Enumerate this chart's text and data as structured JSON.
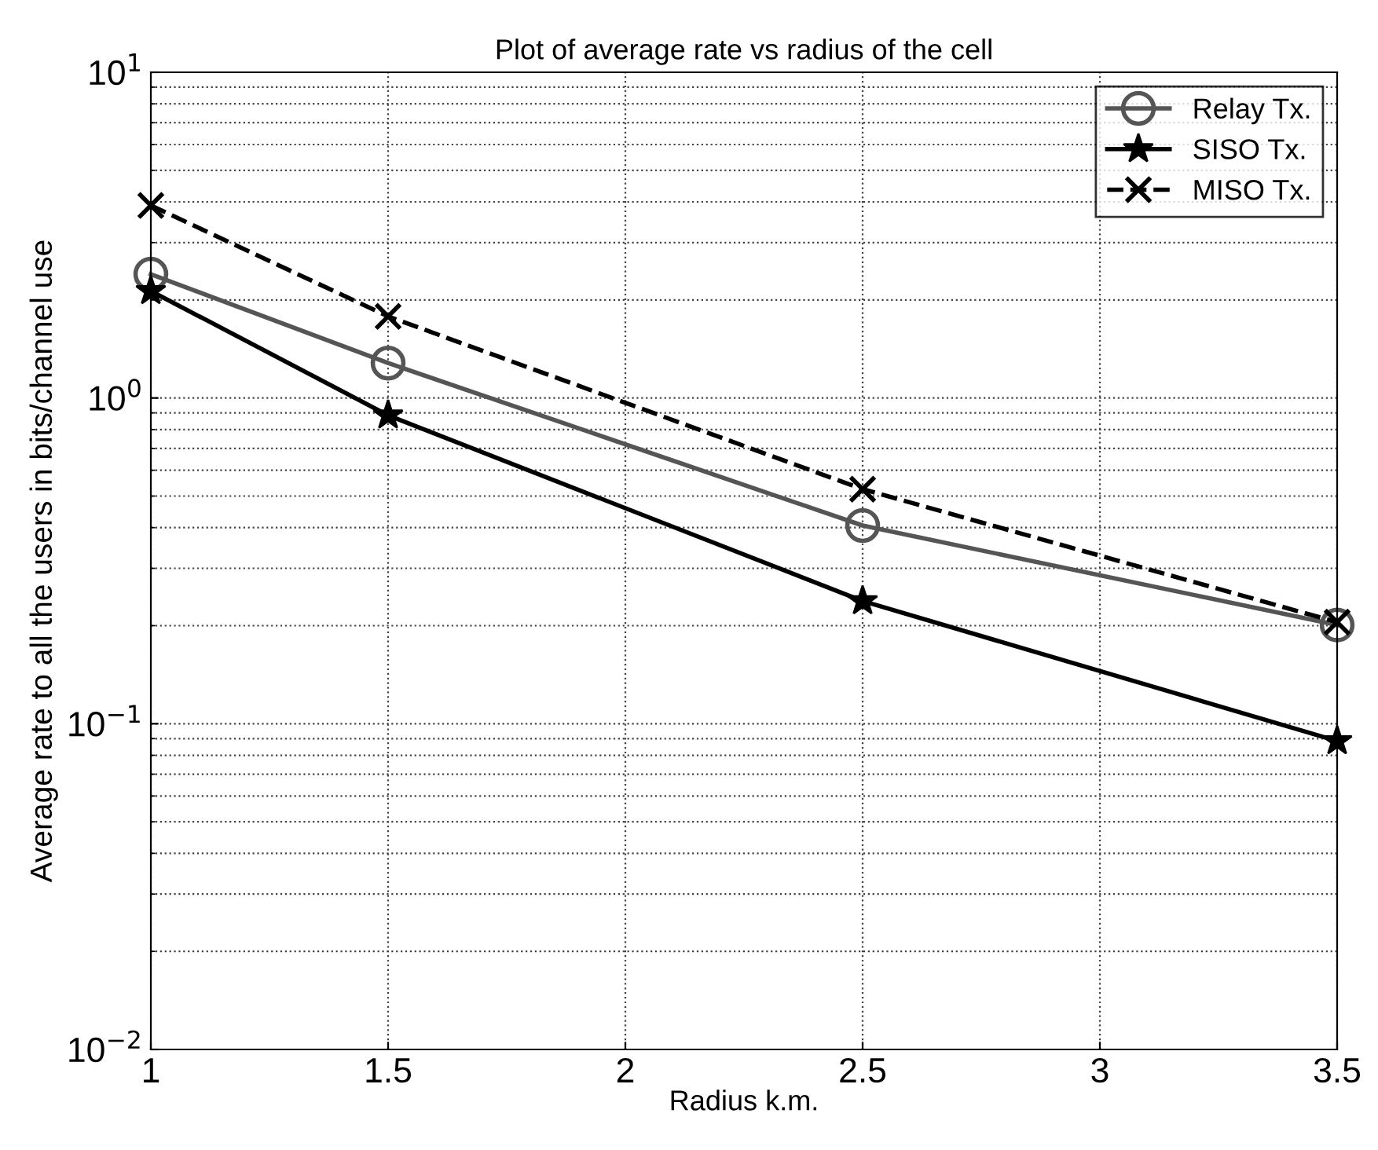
{
  "chart_data": {
    "type": "line",
    "title": "Plot of average rate vs radius of the cell",
    "xlabel": "Radius k.m.",
    "ylabel": "Average rate to all the users in bits/channel use",
    "x": [
      1,
      1.5,
      2.5,
      3.5
    ],
    "series": [
      {
        "name": "Relay Tx.",
        "color": "#555555",
        "marker": "circle",
        "line_style": "solid",
        "values": [
          2.4,
          1.28,
          0.406,
          0.201
        ]
      },
      {
        "name": "SISO Tx.",
        "color": "#000000",
        "marker": "star",
        "line_style": "solid",
        "values": [
          2.13,
          0.885,
          0.238,
          0.0885
        ]
      },
      {
        "name": "MISO Tx.",
        "color": "#000000",
        "marker": "cross",
        "line_style": "dashed",
        "values": [
          3.9,
          1.78,
          0.525,
          0.205
        ]
      }
    ],
    "log": "y",
    "xlim": [
      1,
      3.5
    ],
    "ylim": [
      0.01,
      10
    ],
    "xticks": [
      1,
      1.5,
      2,
      2.5,
      3,
      3.5
    ],
    "yticks": [
      {
        "value": 0.01,
        "label": "10$^{−2}$"
      },
      {
        "value": 0.1,
        "label": "10$^{−1}$"
      },
      {
        "value": 1,
        "label": "10$^{0}$"
      },
      {
        "value": 10,
        "label": "10$^{1}$"
      }
    ],
    "grid": true,
    "legend": "top right"
  }
}
